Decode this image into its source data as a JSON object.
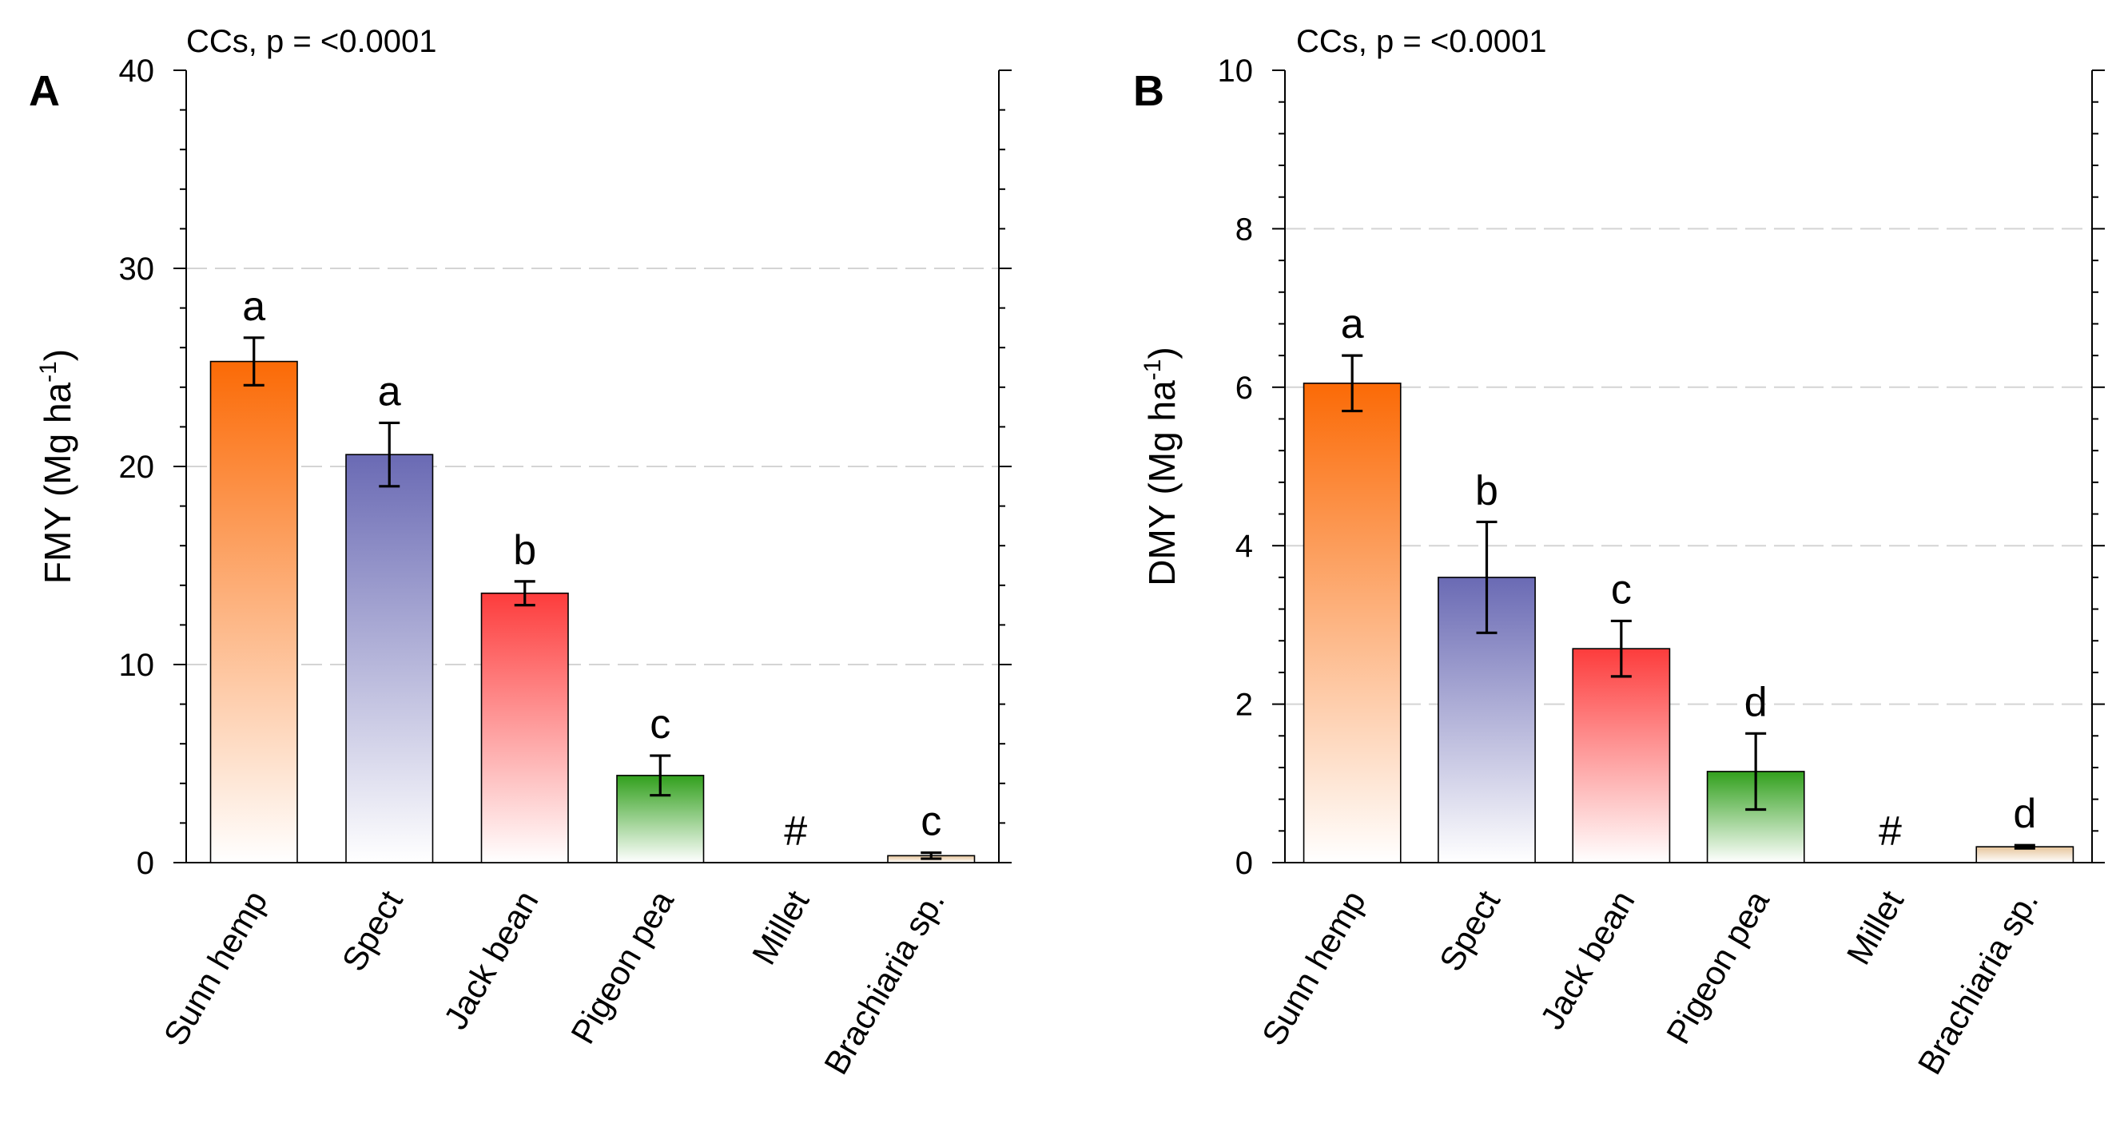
{
  "figure": {
    "colors": {
      "Sunn hemp": "#fb6a06",
      "Spect": "#6a6ab4",
      "Jack bean": "#fd3c3c",
      "Pigeon pea": "#32a01d",
      "Millet": "#cccccc",
      "Brachiaria sp.": "#e6c49a"
    }
  },
  "chart_data": [
    {
      "panel": "A",
      "type": "bar",
      "annotation": "CCs, p = <0.0001",
      "ylabel": "FMY (Mg ha",
      "ylabel_sup": "-1",
      "ylabel_close": ")",
      "ylim": [
        0,
        40
      ],
      "yticks": [
        0,
        10,
        20,
        30,
        40
      ],
      "grid_values": [
        10,
        20,
        30
      ],
      "categories": [
        "Sunn hemp",
        "Spect",
        "Jack bean",
        "Pigeon pea",
        "Millet",
        "Brachiaria sp."
      ],
      "values": [
        25.3,
        20.6,
        13.6,
        4.4,
        0,
        0.35
      ],
      "errors": [
        1.2,
        1.6,
        0.6,
        1.0,
        0,
        0.15
      ],
      "letters": [
        "a",
        "a",
        "b",
        "c",
        "#",
        "c"
      ]
    },
    {
      "panel": "B",
      "type": "bar",
      "annotation": "CCs, p = <0.0001",
      "ylabel": "DMY (Mg ha",
      "ylabel_sup": "-1",
      "ylabel_close": ")",
      "ylim": [
        0,
        10
      ],
      "yticks": [
        0,
        2,
        4,
        6,
        8,
        10
      ],
      "grid_values": [
        2,
        4,
        6,
        8
      ],
      "categories": [
        "Sunn hemp",
        "Spect",
        "Jack bean",
        "Pigeon pea",
        "Millet",
        "Brachiaria sp."
      ],
      "values": [
        6.05,
        3.6,
        2.7,
        1.15,
        0,
        0.2
      ],
      "errors": [
        0.35,
        0.7,
        0.35,
        0.48,
        0,
        0.02
      ],
      "letters": [
        "a",
        "b",
        "c",
        "d",
        "#",
        "d"
      ]
    }
  ]
}
